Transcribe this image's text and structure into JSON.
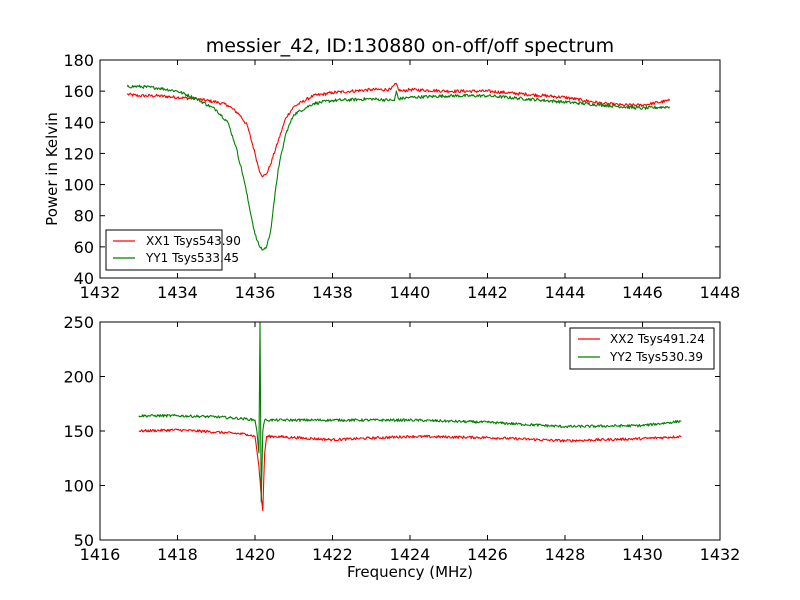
{
  "chart_data": [
    {
      "type": "line",
      "title": "messier_42, ID:130880 on-off/off spectrum",
      "xlabel": "",
      "ylabel": "Power in Kelvin",
      "xlim": [
        1432,
        1448
      ],
      "ylim": [
        40,
        180
      ],
      "xticks": [
        1432,
        1434,
        1436,
        1438,
        1440,
        1442,
        1444,
        1446,
        1448
      ],
      "yticks": [
        40,
        60,
        80,
        100,
        120,
        140,
        160,
        180
      ],
      "legend_position": "lower-left",
      "grid": false,
      "series": [
        {
          "name": "XX1 Tsys543.90",
          "color": "#ff0000",
          "x": [
            1432.7,
            1433.0,
            1433.5,
            1434.0,
            1434.5,
            1435.0,
            1435.3,
            1435.6,
            1435.8,
            1436.0,
            1436.1,
            1436.2,
            1436.3,
            1436.4,
            1436.6,
            1436.8,
            1437.0,
            1437.5,
            1438.0,
            1438.5,
            1439.0,
            1439.5,
            1439.65,
            1439.7,
            1439.8,
            1440.0,
            1441.0,
            1442.0,
            1443.0,
            1444.0,
            1444.5,
            1445.0,
            1445.5,
            1446.0,
            1446.7
          ],
          "y": [
            158,
            157,
            157,
            156,
            155,
            153,
            151,
            145,
            138,
            120,
            110,
            105,
            107,
            113,
            128,
            143,
            150,
            157,
            159,
            160,
            161,
            161,
            165,
            161,
            160,
            161,
            160,
            160,
            158,
            156,
            154,
            152,
            151,
            151,
            154
          ]
        },
        {
          "name": "YY1 Tsys533.45",
          "color": "#008000",
          "x": [
            1432.7,
            1433.0,
            1433.5,
            1434.0,
            1434.5,
            1435.0,
            1435.3,
            1435.5,
            1435.7,
            1435.9,
            1436.0,
            1436.1,
            1436.2,
            1436.3,
            1436.4,
            1436.5,
            1436.6,
            1436.8,
            1437.0,
            1437.5,
            1438.0,
            1439.0,
            1439.6,
            1439.65,
            1439.7,
            1440.0,
            1441.0,
            1442.0,
            1443.0,
            1444.0,
            1445.0,
            1446.0,
            1446.7
          ],
          "y": [
            163,
            163,
            162,
            160,
            155,
            148,
            140,
            125,
            105,
            80,
            68,
            61,
            58,
            60,
            70,
            90,
            110,
            133,
            145,
            152,
            154,
            155,
            154,
            160,
            155,
            156,
            157,
            157,
            155,
            153,
            151,
            149,
            150
          ]
        }
      ]
    },
    {
      "type": "line",
      "title": "",
      "xlabel": "Frequency (MHz)",
      "ylabel": "",
      "xlim": [
        1416,
        1432
      ],
      "ylim": [
        50,
        250
      ],
      "xticks": [
        1416,
        1418,
        1420,
        1422,
        1424,
        1426,
        1428,
        1430,
        1432
      ],
      "yticks": [
        50,
        100,
        150,
        200,
        250
      ],
      "legend_position": "upper-right",
      "grid": false,
      "series": [
        {
          "name": "XX2 Tsys491.24",
          "color": "#ff0000",
          "x": [
            1417.0,
            1418.0,
            1419.0,
            1419.8,
            1420.0,
            1420.05,
            1420.1,
            1420.15,
            1420.2,
            1420.25,
            1420.3,
            1420.5,
            1421.0,
            1422.0,
            1424.0,
            1426.0,
            1428.0,
            1430.0,
            1431.0
          ],
          "y": [
            150,
            151,
            149,
            147,
            145,
            132,
            118,
            95,
            77,
            130,
            145,
            145,
            144,
            142,
            145,
            144,
            141,
            143,
            145
          ]
        },
        {
          "name": "YY2 Tsys530.39",
          "color": "#008000",
          "x": [
            1417.0,
            1418.0,
            1419.0,
            1419.8,
            1420.0,
            1420.05,
            1420.1,
            1420.13,
            1420.16,
            1420.2,
            1420.25,
            1420.3,
            1420.5,
            1421.0,
            1422.0,
            1424.0,
            1426.0,
            1428.0,
            1430.0,
            1431.0
          ],
          "y": [
            164,
            164,
            163,
            161,
            160,
            150,
            130,
            250,
            85,
            150,
            160,
            160,
            160,
            160,
            160,
            160,
            158,
            154,
            155,
            159
          ]
        }
      ]
    }
  ]
}
